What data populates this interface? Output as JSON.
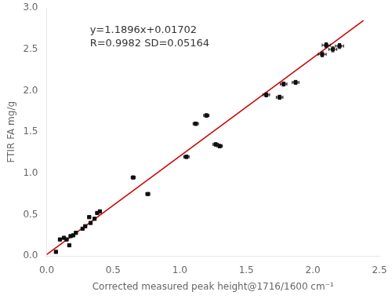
{
  "chart_data": {
    "type": "scatter",
    "x_label": "Corrected measured peak height@1716/1600 cm⁻¹",
    "y_label": "FTIR FA mg/g",
    "annotation": [
      "y=1.1896x+0.01702",
      "R=0.9982 SD=0.05164"
    ],
    "xlim": [
      0.0,
      2.5
    ],
    "ylim": [
      0.0,
      3.0
    ],
    "xticks": [
      {
        "value": 0,
        "label": "0.0"
      },
      0.5,
      {
        "value": 1,
        "label": "1.0"
      },
      1.5,
      {
        "value": 2,
        "label": "2.0"
      },
      2.5
    ],
    "yticks": [
      {
        "value": 0,
        "label": "0.0"
      },
      0.5,
      {
        "value": 1,
        "label": "1.0"
      },
      1.5,
      {
        "value": 2,
        "label": "2.0"
      },
      2.5,
      {
        "value": 3,
        "label": "3.0"
      }
    ],
    "grid": false,
    "background": "#ffffff",
    "series": [
      {
        "type": "line",
        "color": "#cc0000",
        "line_style": "solid",
        "x": [
          0.0,
          2.38
        ],
        "values": [
          0.01702,
          2.848268
        ]
      },
      {
        "type": "scatter",
        "color": "#111111",
        "marker": "square",
        "x": [
          0.07,
          0.1,
          0.13,
          0.15,
          0.17,
          0.18,
          0.2,
          0.22,
          0.27,
          0.29,
          0.32,
          0.33,
          0.36,
          0.38,
          0.4,
          0.65,
          0.76,
          1.05,
          1.12,
          1.2,
          1.27,
          1.3,
          1.65,
          1.75,
          1.78,
          1.87,
          2.07,
          2.1,
          2.15,
          2.2
        ],
        "values": [
          0.05,
          0.2,
          0.22,
          0.2,
          0.13,
          0.24,
          0.25,
          0.28,
          0.33,
          0.36,
          0.47,
          0.4,
          0.45,
          0.52,
          0.54,
          0.95,
          0.75,
          1.2,
          1.6,
          1.7,
          1.35,
          1.33,
          1.95,
          1.92,
          2.08,
          2.1,
          2.44,
          2.55,
          2.5,
          2.54
        ],
        "xerr": [
          0.01,
          0.01,
          0.01,
          0.01,
          0.01,
          0.01,
          0.01,
          0.01,
          0.01,
          0.01,
          0.01,
          0.01,
          0.01,
          0.01,
          0.01,
          0.015,
          0.015,
          0.02,
          0.02,
          0.02,
          0.02,
          0.02,
          0.025,
          0.025,
          0.025,
          0.025,
          0.03,
          0.03,
          0.03,
          0.03
        ],
        "yerr": [
          0.01,
          0.01,
          0.01,
          0.01,
          0.01,
          0.01,
          0.01,
          0.01,
          0.01,
          0.01,
          0.01,
          0.01,
          0.01,
          0.01,
          0.01,
          0.015,
          0.015,
          0.02,
          0.02,
          0.02,
          0.02,
          0.02,
          0.025,
          0.025,
          0.025,
          0.025,
          0.03,
          0.03,
          0.03,
          0.03
        ]
      }
    ]
  }
}
